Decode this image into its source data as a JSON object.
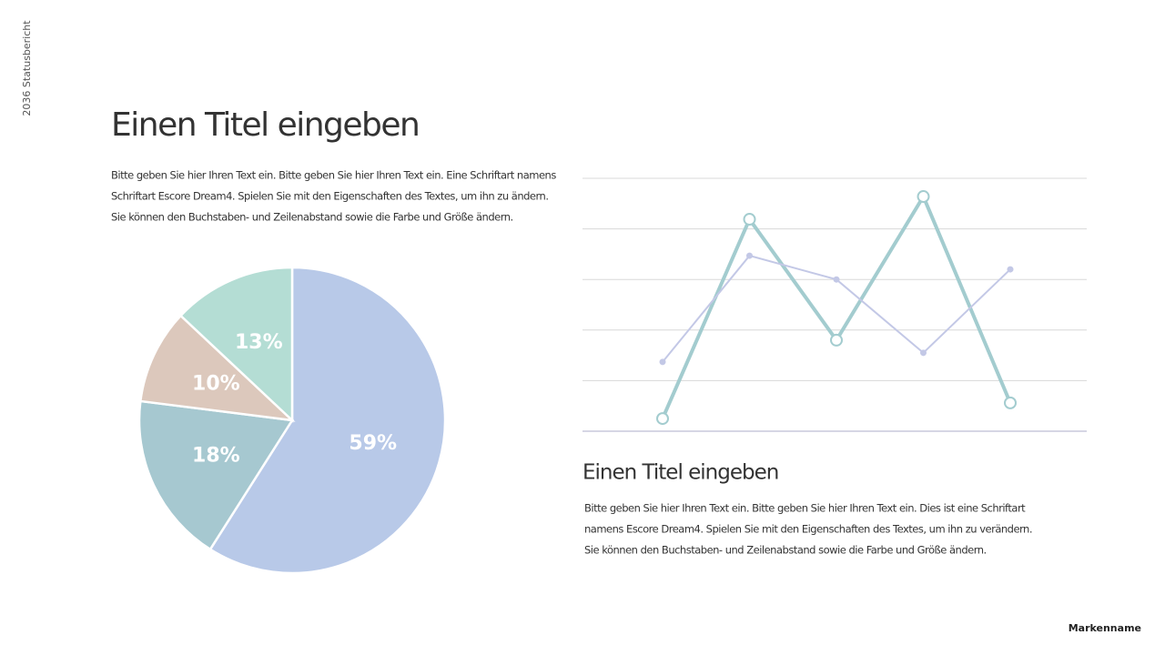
{
  "side_label": "2036 Statusbericht",
  "title": "Einen Titel eingeben",
  "body_lines": [
    "Bitte geben Sie hier Ihren Text ein. Bitte geben Sie hier Ihren Text ein. Eine Schriftart namens",
    "Schriftart Escore Dream4. Spielen Sie mit den Eigenschaften des Textes, um ihn zu ändern.",
    "Sie können den Buchstaben- und Zeilenabstand sowie die Farbe und Größe ändern."
  ],
  "subtitle": "Einen Titel eingeben",
  "sub_body_lines": [
    "Bitte geben Sie hier Ihren Text ein. Bitte geben Sie hier Ihren Text ein. Dies ist eine Schriftart",
    "namens Escore Dream4. Spielen Sie mit den Eigenschaften des Textes, um ihn zu verändern.",
    "Sie können den Buchstaben- und Zeilenabstand sowie die Farbe und Größe ändern."
  ],
  "brand": "Markenname",
  "chart_data": [
    {
      "type": "pie",
      "values": [
        59,
        18,
        10,
        13
      ],
      "value_labels": [
        "59%",
        "18%",
        "10%",
        "13%"
      ],
      "colors": [
        "#b8c9e8",
        "#a6c8d0",
        "#dcc8bc",
        "#b4ddd4"
      ]
    },
    {
      "type": "line",
      "categories": [
        null,
        null,
        null,
        null,
        null
      ],
      "series": [
        {
          "color": "#a3cccf",
          "values": [
            0.25,
            4.19,
            1.8,
            4.64,
            0.56
          ]
        },
        {
          "color": "#c3c8e6",
          "values": [
            1.37,
            3.47,
            3.0,
            1.55,
            3.2
          ]
        }
      ],
      "ylim": [
        0,
        5
      ],
      "yticks": [
        0,
        1,
        2,
        3,
        4,
        5
      ],
      "grid": true
    }
  ]
}
